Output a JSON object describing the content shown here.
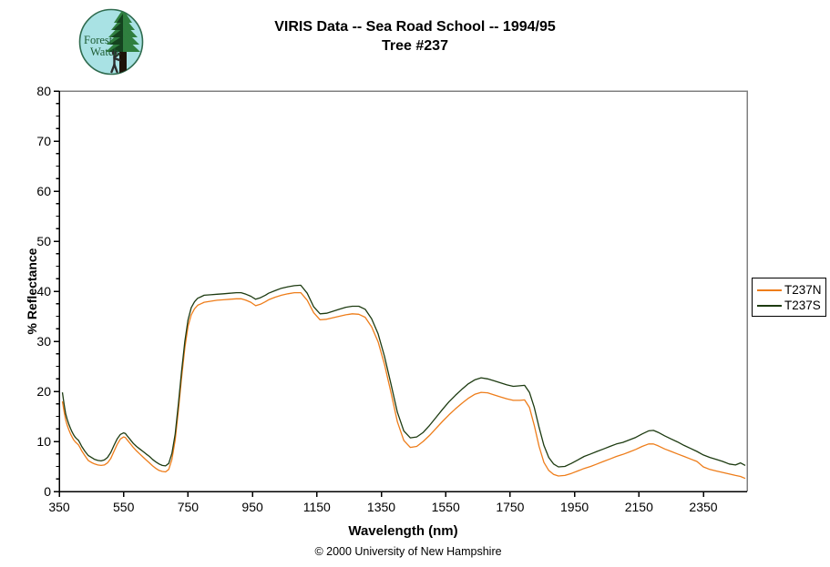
{
  "header": {
    "title": "VIRIS Data -- Sea Road School -- 1994/95",
    "subtitle": "Tree #237"
  },
  "logo": {
    "line1": "Forest",
    "line2": "Watch",
    "bg_color": "#a9e2e4",
    "ring_color": "#2f6b4f",
    "tree_color": "#2f7f3f",
    "tree_shadow_color": "#14431f",
    "trunk_color": "#1d1309",
    "person_color": "#2b2b2b",
    "text_color": "#1d5c33"
  },
  "footer": {
    "text": "© 2000 University of New Hampshire"
  },
  "chart_data": {
    "type": "line",
    "title": "VIRIS Data -- Sea Road School -- 1994/95",
    "subtitle": "Tree #237",
    "xlabel": "Wavelength (nm)",
    "ylabel": "% Reflectance",
    "xlim": [
      350,
      2490
    ],
    "ylim": [
      0,
      80
    ],
    "x_ticks": [
      350,
      550,
      750,
      950,
      1150,
      1350,
      1550,
      1750,
      1950,
      2150,
      2350
    ],
    "y_ticks": [
      0,
      10,
      20,
      30,
      40,
      50,
      60,
      70,
      80
    ],
    "y_minor_step": 2.5,
    "grid": false,
    "legend_position": "outside-right",
    "axis_border_color": "#808080",
    "axis_color": "#000000",
    "series": [
      {
        "name": "T237N",
        "color": "#ee7d1a",
        "points": [
          [
            360,
            18.0
          ],
          [
            365,
            16.0
          ],
          [
            370,
            14.3
          ],
          [
            375,
            13.2
          ],
          [
            380,
            12.3
          ],
          [
            385,
            11.5
          ],
          [
            390,
            10.9
          ],
          [
            395,
            10.3
          ],
          [
            400,
            9.9
          ],
          [
            405,
            9.6
          ],
          [
            410,
            9.3
          ],
          [
            415,
            8.7
          ],
          [
            420,
            8.1
          ],
          [
            430,
            7.1
          ],
          [
            440,
            6.2
          ],
          [
            450,
            5.8
          ],
          [
            460,
            5.5
          ],
          [
            470,
            5.3
          ],
          [
            480,
            5.2
          ],
          [
            490,
            5.3
          ],
          [
            500,
            5.7
          ],
          [
            510,
            6.6
          ],
          [
            520,
            8.0
          ],
          [
            530,
            9.4
          ],
          [
            540,
            10.5
          ],
          [
            550,
            10.9
          ],
          [
            555,
            10.8
          ],
          [
            560,
            10.4
          ],
          [
            570,
            9.6
          ],
          [
            580,
            8.8
          ],
          [
            590,
            8.1
          ],
          [
            600,
            7.5
          ],
          [
            610,
            6.9
          ],
          [
            620,
            6.3
          ],
          [
            630,
            5.7
          ],
          [
            640,
            5.1
          ],
          [
            650,
            4.6
          ],
          [
            660,
            4.2
          ],
          [
            670,
            4.0
          ],
          [
            680,
            3.9
          ],
          [
            690,
            4.4
          ],
          [
            700,
            6.4
          ],
          [
            710,
            10.3
          ],
          [
            720,
            16.2
          ],
          [
            730,
            22.7
          ],
          [
            740,
            28.7
          ],
          [
            750,
            33.0
          ],
          [
            760,
            35.3
          ],
          [
            770,
            36.5
          ],
          [
            780,
            37.2
          ],
          [
            790,
            37.5
          ],
          [
            800,
            37.8
          ],
          [
            820,
            38.0
          ],
          [
            840,
            38.2
          ],
          [
            860,
            38.3
          ],
          [
            880,
            38.4
          ],
          [
            900,
            38.5
          ],
          [
            915,
            38.5
          ],
          [
            930,
            38.2
          ],
          [
            945,
            37.8
          ],
          [
            960,
            37.1
          ],
          [
            975,
            37.4
          ],
          [
            990,
            37.9
          ],
          [
            1000,
            38.3
          ],
          [
            1020,
            38.8
          ],
          [
            1040,
            39.2
          ],
          [
            1060,
            39.5
          ],
          [
            1080,
            39.7
          ],
          [
            1100,
            39.7
          ],
          [
            1120,
            38.2
          ],
          [
            1140,
            35.7
          ],
          [
            1160,
            34.3
          ],
          [
            1180,
            34.4
          ],
          [
            1200,
            34.7
          ],
          [
            1220,
            35.0
          ],
          [
            1240,
            35.3
          ],
          [
            1260,
            35.5
          ],
          [
            1280,
            35.4
          ],
          [
            1300,
            34.8
          ],
          [
            1320,
            32.9
          ],
          [
            1340,
            29.9
          ],
          [
            1360,
            25.4
          ],
          [
            1380,
            19.8
          ],
          [
            1400,
            13.9
          ],
          [
            1420,
            10.2
          ],
          [
            1440,
            8.8
          ],
          [
            1460,
            9.0
          ],
          [
            1480,
            10.0
          ],
          [
            1500,
            11.2
          ],
          [
            1520,
            12.6
          ],
          [
            1540,
            14.0
          ],
          [
            1560,
            15.3
          ],
          [
            1580,
            16.5
          ],
          [
            1600,
            17.6
          ],
          [
            1620,
            18.6
          ],
          [
            1640,
            19.4
          ],
          [
            1660,
            19.8
          ],
          [
            1680,
            19.7
          ],
          [
            1700,
            19.3
          ],
          [
            1720,
            18.9
          ],
          [
            1740,
            18.5
          ],
          [
            1760,
            18.2
          ],
          [
            1780,
            18.2
          ],
          [
            1795,
            18.3
          ],
          [
            1810,
            16.8
          ],
          [
            1825,
            13.2
          ],
          [
            1840,
            9.0
          ],
          [
            1855,
            5.8
          ],
          [
            1870,
            4.2
          ],
          [
            1885,
            3.4
          ],
          [
            1900,
            3.1
          ],
          [
            1920,
            3.2
          ],
          [
            1940,
            3.6
          ],
          [
            1960,
            4.1
          ],
          [
            1980,
            4.6
          ],
          [
            2000,
            5.0
          ],
          [
            2020,
            5.5
          ],
          [
            2040,
            6.0
          ],
          [
            2060,
            6.5
          ],
          [
            2080,
            7.0
          ],
          [
            2100,
            7.4
          ],
          [
            2120,
            7.9
          ],
          [
            2140,
            8.4
          ],
          [
            2160,
            9.0
          ],
          [
            2180,
            9.5
          ],
          [
            2195,
            9.5
          ],
          [
            2210,
            9.1
          ],
          [
            2230,
            8.5
          ],
          [
            2250,
            8.0
          ],
          [
            2270,
            7.5
          ],
          [
            2290,
            7.0
          ],
          [
            2310,
            6.5
          ],
          [
            2330,
            6.0
          ],
          [
            2350,
            4.9
          ],
          [
            2370,
            4.4
          ],
          [
            2390,
            4.1
          ],
          [
            2410,
            3.8
          ],
          [
            2430,
            3.5
          ],
          [
            2450,
            3.2
          ],
          [
            2465,
            3.0
          ],
          [
            2480,
            2.6
          ]
        ]
      },
      {
        "name": "T237S",
        "color": "#1d3b11",
        "points": [
          [
            360,
            19.8
          ],
          [
            365,
            17.5
          ],
          [
            370,
            15.5
          ],
          [
            375,
            14.4
          ],
          [
            380,
            13.4
          ],
          [
            385,
            12.6
          ],
          [
            390,
            11.9
          ],
          [
            395,
            11.3
          ],
          [
            400,
            10.8
          ],
          [
            405,
            10.5
          ],
          [
            410,
            10.2
          ],
          [
            415,
            9.6
          ],
          [
            420,
            9.0
          ],
          [
            430,
            8.0
          ],
          [
            440,
            7.2
          ],
          [
            450,
            6.8
          ],
          [
            460,
            6.4
          ],
          [
            470,
            6.2
          ],
          [
            480,
            6.1
          ],
          [
            490,
            6.3
          ],
          [
            500,
            6.8
          ],
          [
            510,
            7.8
          ],
          [
            520,
            9.2
          ],
          [
            530,
            10.5
          ],
          [
            540,
            11.4
          ],
          [
            550,
            11.7
          ],
          [
            555,
            11.6
          ],
          [
            560,
            11.2
          ],
          [
            570,
            10.4
          ],
          [
            580,
            9.6
          ],
          [
            590,
            9.0
          ],
          [
            600,
            8.5
          ],
          [
            610,
            8.0
          ],
          [
            620,
            7.5
          ],
          [
            630,
            7.0
          ],
          [
            640,
            6.4
          ],
          [
            650,
            5.9
          ],
          [
            660,
            5.5
          ],
          [
            670,
            5.2
          ],
          [
            680,
            5.1
          ],
          [
            690,
            5.6
          ],
          [
            700,
            7.6
          ],
          [
            710,
            11.5
          ],
          [
            720,
            17.5
          ],
          [
            730,
            24.0
          ],
          [
            740,
            30.0
          ],
          [
            750,
            34.3
          ],
          [
            760,
            36.7
          ],
          [
            770,
            37.9
          ],
          [
            780,
            38.6
          ],
          [
            790,
            38.9
          ],
          [
            800,
            39.2
          ],
          [
            820,
            39.3
          ],
          [
            840,
            39.4
          ],
          [
            860,
            39.5
          ],
          [
            880,
            39.6
          ],
          [
            900,
            39.7
          ],
          [
            915,
            39.7
          ],
          [
            930,
            39.4
          ],
          [
            945,
            39.0
          ],
          [
            960,
            38.4
          ],
          [
            975,
            38.7
          ],
          [
            990,
            39.2
          ],
          [
            1000,
            39.6
          ],
          [
            1020,
            40.1
          ],
          [
            1040,
            40.6
          ],
          [
            1060,
            40.9
          ],
          [
            1080,
            41.1
          ],
          [
            1100,
            41.2
          ],
          [
            1120,
            39.6
          ],
          [
            1140,
            36.9
          ],
          [
            1160,
            35.5
          ],
          [
            1180,
            35.6
          ],
          [
            1200,
            36.0
          ],
          [
            1220,
            36.4
          ],
          [
            1240,
            36.8
          ],
          [
            1260,
            37.0
          ],
          [
            1280,
            37.0
          ],
          [
            1300,
            36.4
          ],
          [
            1320,
            34.5
          ],
          [
            1340,
            31.5
          ],
          [
            1360,
            27.0
          ],
          [
            1380,
            21.5
          ],
          [
            1400,
            15.8
          ],
          [
            1420,
            12.1
          ],
          [
            1440,
            10.7
          ],
          [
            1460,
            10.9
          ],
          [
            1480,
            11.8
          ],
          [
            1500,
            13.2
          ],
          [
            1520,
            14.8
          ],
          [
            1540,
            16.4
          ],
          [
            1560,
            17.9
          ],
          [
            1580,
            19.2
          ],
          [
            1600,
            20.4
          ],
          [
            1620,
            21.5
          ],
          [
            1640,
            22.3
          ],
          [
            1660,
            22.7
          ],
          [
            1680,
            22.5
          ],
          [
            1700,
            22.1
          ],
          [
            1720,
            21.7
          ],
          [
            1740,
            21.3
          ],
          [
            1760,
            21.0
          ],
          [
            1780,
            21.1
          ],
          [
            1795,
            21.2
          ],
          [
            1810,
            19.8
          ],
          [
            1825,
            16.8
          ],
          [
            1840,
            12.8
          ],
          [
            1855,
            9.2
          ],
          [
            1870,
            6.8
          ],
          [
            1885,
            5.5
          ],
          [
            1900,
            4.9
          ],
          [
            1920,
            5.0
          ],
          [
            1940,
            5.6
          ],
          [
            1960,
            6.3
          ],
          [
            1980,
            7.0
          ],
          [
            2000,
            7.5
          ],
          [
            2020,
            8.0
          ],
          [
            2040,
            8.5
          ],
          [
            2060,
            9.0
          ],
          [
            2080,
            9.5
          ],
          [
            2100,
            9.8
          ],
          [
            2120,
            10.3
          ],
          [
            2140,
            10.8
          ],
          [
            2160,
            11.5
          ],
          [
            2180,
            12.1
          ],
          [
            2195,
            12.2
          ],
          [
            2210,
            11.8
          ],
          [
            2230,
            11.1
          ],
          [
            2250,
            10.5
          ],
          [
            2270,
            9.9
          ],
          [
            2290,
            9.2
          ],
          [
            2310,
            8.6
          ],
          [
            2330,
            8.0
          ],
          [
            2350,
            7.3
          ],
          [
            2370,
            6.8
          ],
          [
            2390,
            6.4
          ],
          [
            2410,
            6.0
          ],
          [
            2430,
            5.5
          ],
          [
            2450,
            5.3
          ],
          [
            2465,
            5.7
          ],
          [
            2480,
            5.2
          ]
        ]
      }
    ]
  }
}
